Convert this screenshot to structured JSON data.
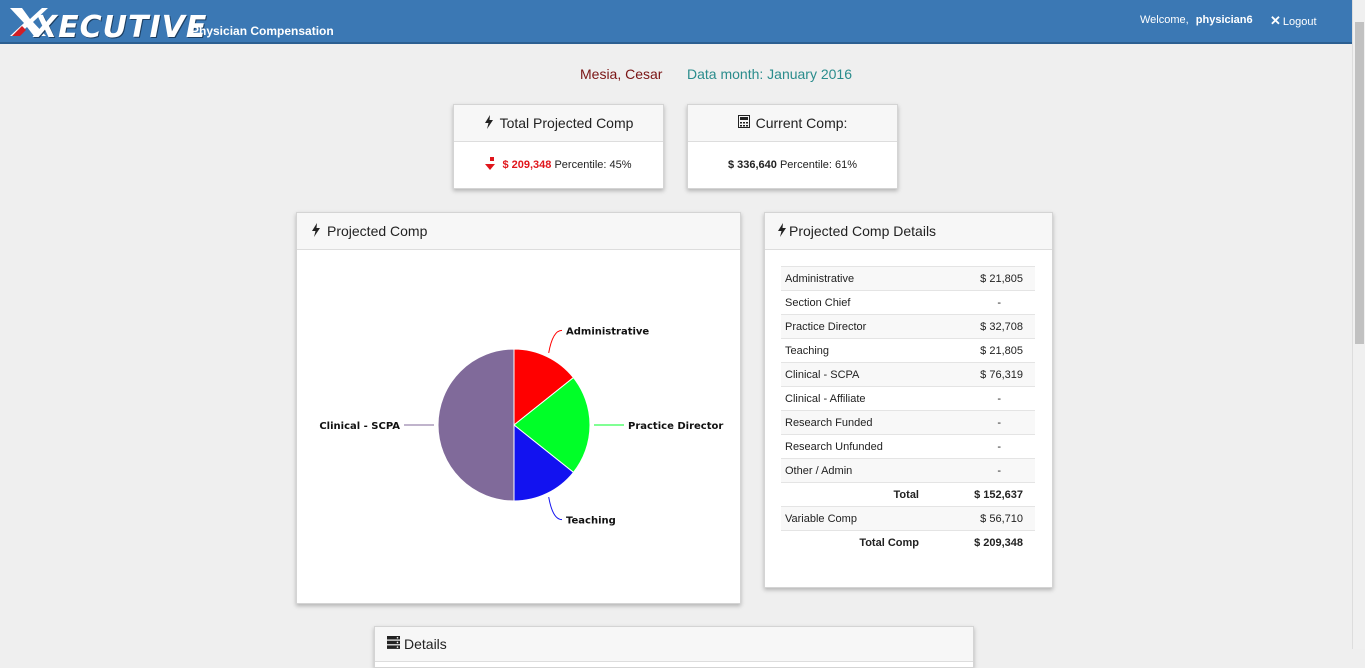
{
  "header": {
    "logo_text": "XECUTIVE",
    "app_subtitle": "Physician Compensation",
    "welcome_label": "Welcome,",
    "username": "physician6",
    "logout_label": "Logout"
  },
  "context": {
    "person_name": "Mesia, Cesar",
    "data_month": "Data month: January 2016"
  },
  "kpis": {
    "total_projected": {
      "title": "Total Projected Comp",
      "icon": "bolt-icon",
      "trend": "down",
      "amount": "$ 209,348",
      "percentile": "Percentile: 45%"
    },
    "current": {
      "title": "Current Comp:",
      "icon": "calculator-icon",
      "amount": "$ 336,640",
      "percentile": "Percentile: 61%"
    }
  },
  "projected_chart": {
    "title": "Projected Comp",
    "icon": "bolt-icon"
  },
  "chart_data": {
    "type": "pie",
    "slices": [
      {
        "label": "Administrative",
        "value": 21805,
        "color": "#ff0000"
      },
      {
        "label": "Practice Director",
        "value": 32708,
        "color": "#00ff28"
      },
      {
        "label": "Teaching",
        "value": 21805,
        "color": "#1212f0"
      },
      {
        "label": "Clinical - SCPA",
        "value": 76319,
        "color": "#806a9a"
      }
    ]
  },
  "details_card": {
    "title": "Projected Comp Details",
    "icon": "bolt-icon",
    "rows": [
      {
        "label": "Administrative",
        "value": "$ 21,805"
      },
      {
        "label": "Section Chief",
        "value": "-"
      },
      {
        "label": "Practice Director",
        "value": "$ 32,708"
      },
      {
        "label": "Teaching",
        "value": "$ 21,805"
      },
      {
        "label": "Clinical - SCPA",
        "value": "$ 76,319"
      },
      {
        "label": "Clinical - Affiliate",
        "value": "-"
      },
      {
        "label": "Research Funded",
        "value": "-"
      },
      {
        "label": "Research Unfunded",
        "value": "-"
      },
      {
        "label": "Other / Admin",
        "value": "-"
      }
    ],
    "total_label": "Total",
    "total_value": "$ 152,637",
    "variable_label": "Variable Comp",
    "variable_value": "$ 56,710",
    "grand_total_label": "Total Comp",
    "grand_total_value": "$ 209,348"
  },
  "bottom_card": {
    "title": "Details",
    "icon": "server-icon"
  },
  "colors": {
    "topbar": "#3b78b4",
    "person_name": "#7a1414",
    "data_month": "#2a8c8c",
    "negative": "#e0161c"
  }
}
